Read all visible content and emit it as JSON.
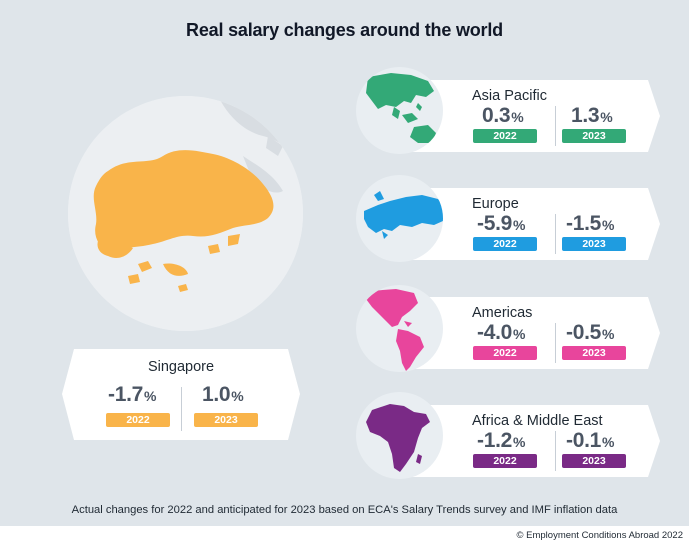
{
  "title": "Real salary changes around the world",
  "footnote": "Actual changes for 2022 and anticipated for 2023 based on ECA's Salary Trends survey and IMF inflation data",
  "copyright": "© Employment Conditions Abroad 2022",
  "singapore": {
    "name": "Singapore",
    "value_2022": "-1.7",
    "value_2023": "1.0",
    "pct_symbol": "%",
    "year_2022": "2022",
    "year_2023": "2023",
    "color": "#f9b44a"
  },
  "regions": [
    {
      "name": "Asia Pacific",
      "value_2022": "0.3",
      "value_2023": "1.3",
      "pct_symbol": "%",
      "year_2022": "2022",
      "year_2023": "2023",
      "color": "#33a977"
    },
    {
      "name": "Europe",
      "value_2022": "-5.9",
      "value_2023": "-1.5",
      "pct_symbol": "%",
      "year_2022": "2022",
      "year_2023": "2023",
      "color": "#1f9ce0"
    },
    {
      "name": "Americas",
      "value_2022": "-4.0",
      "value_2023": "-0.5",
      "pct_symbol": "%",
      "year_2022": "2022",
      "year_2023": "2023",
      "color": "#e8459c"
    },
    {
      "name": "Africa & Middle East",
      "value_2022": "-1.2",
      "value_2023": "-0.1",
      "pct_symbol": "%",
      "year_2022": "2022",
      "year_2023": "2023",
      "color": "#7a2a86"
    }
  ]
}
